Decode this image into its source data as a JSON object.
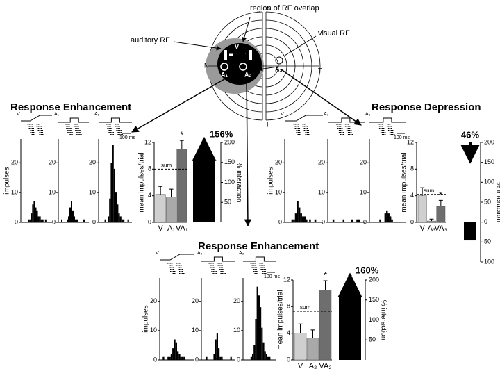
{
  "diagram": {
    "labels": {
      "top": "S",
      "bottom": "I",
      "left": "N",
      "right": "T",
      "overlap": "region of RF overlap",
      "auditory": "auditory RF",
      "visual": "visual RF",
      "v": "V",
      "a1": "A₁",
      "a2": "A₂",
      "a3": "A₃"
    }
  },
  "sections": [
    "Response Enhancement",
    "Response Depression",
    "Response Enhancement"
  ],
  "chart_data": [
    {
      "type": "histogram",
      "ylabel": "impulses",
      "stimulus": "V",
      "bins": [
        0,
        1,
        2,
        3,
        4,
        5,
        6,
        7,
        8,
        9,
        10,
        11,
        12,
        13,
        14,
        15,
        16,
        17,
        18,
        19,
        20
      ],
      "counts": [
        0,
        0,
        0,
        0,
        1,
        1,
        3,
        6,
        7,
        5,
        4,
        2,
        2,
        1,
        1,
        0,
        1,
        0,
        0,
        0
      ],
      "ylim": [
        0,
        28
      ],
      "yticks": [
        0,
        10,
        20
      ]
    },
    {
      "type": "histogram",
      "stimulus": "A₁",
      "bins": [
        0,
        1,
        2,
        3,
        4,
        5,
        6,
        7,
        8,
        9,
        10,
        11,
        12,
        13,
        14,
        15,
        16,
        17,
        18,
        19,
        20
      ],
      "counts": [
        0,
        1,
        0,
        0,
        0,
        1,
        2,
        5,
        7,
        4,
        2,
        1,
        1,
        0,
        0,
        0,
        0,
        1,
        0,
        0
      ],
      "ylim": [
        0,
        28
      ],
      "yticks": [
        0,
        10,
        20
      ]
    },
    {
      "type": "histogram",
      "stimulus": "A₁",
      "scale_label": "100 ms",
      "bins": [
        0,
        1,
        2,
        3,
        4,
        5,
        6,
        7,
        8,
        9,
        10,
        11,
        12,
        13,
        14,
        15,
        16,
        17,
        18,
        19,
        20
      ],
      "counts": [
        0,
        0,
        0,
        1,
        0,
        2,
        8,
        20,
        26,
        18,
        10,
        6,
        3,
        2,
        1,
        1,
        0,
        0,
        1,
        0
      ],
      "ylim": [
        0,
        28
      ],
      "yticks": [
        0,
        10,
        20
      ]
    },
    {
      "type": "bar",
      "ylabel": "mean impulses/trial",
      "categories": [
        "V",
        "A₁",
        "VA₁"
      ],
      "values": [
        4.2,
        3.8,
        11
      ],
      "errors": [
        1.2,
        1.2,
        1.3
      ],
      "colors": [
        "#cfcfcf",
        "#a9a9a9",
        "#6e6e6e"
      ],
      "ylim": [
        0,
        12
      ],
      "yticks": [
        0,
        4,
        8,
        12
      ],
      "sum_label": "sum",
      "sum_value": 8,
      "annotation": "*",
      "y2label": "% interaction",
      "y2lim": [
        0,
        200
      ],
      "y2ticks": [
        50,
        100,
        150,
        200
      ],
      "interaction": 156,
      "interaction_label": "156%",
      "interaction_color": "#000000"
    },
    {
      "type": "histogram",
      "ylabel": "impulses",
      "stimulus": "V",
      "bins": [
        0,
        1,
        2,
        3,
        4,
        5,
        6,
        7,
        8,
        9,
        10,
        11,
        12,
        13,
        14,
        15,
        16,
        17,
        18,
        19,
        20
      ],
      "counts": [
        0,
        0,
        0,
        1,
        1,
        3,
        7,
        5,
        3,
        2,
        2,
        1,
        0,
        1,
        0,
        0,
        1,
        0,
        0,
        0
      ],
      "ylim": [
        0,
        28
      ],
      "yticks": [
        0,
        10,
        20
      ]
    },
    {
      "type": "histogram",
      "stimulus": "A₃",
      "bins": [
        0,
        1,
        2,
        3,
        4,
        5,
        6,
        7,
        8,
        9,
        10,
        11,
        12,
        13,
        14,
        15,
        16,
        17,
        18,
        19,
        20
      ],
      "counts": [
        0,
        0,
        1,
        0,
        0,
        0,
        0,
        0,
        1,
        0,
        0,
        0,
        0,
        1,
        0,
        0,
        1,
        1,
        0,
        0
      ],
      "ylim": [
        0,
        28
      ],
      "yticks": [
        0,
        10,
        20
      ]
    },
    {
      "type": "histogram",
      "stimulus": "A₃",
      "scale_label": "100 ms",
      "bins": [
        0,
        1,
        2,
        3,
        4,
        5,
        6,
        7,
        8,
        9,
        10,
        11,
        12,
        13,
        14,
        15,
        16,
        17,
        18,
        19,
        20
      ],
      "counts": [
        0,
        0,
        0,
        0,
        0,
        1,
        0,
        0,
        3,
        4,
        3,
        2,
        1,
        0,
        0,
        0,
        0,
        0,
        0,
        0
      ],
      "ylim": [
        0,
        28
      ],
      "yticks": [
        0,
        10,
        20
      ]
    },
    {
      "type": "bar",
      "ylabel": "mean impulses/trial",
      "categories": [
        "V",
        "A₃",
        "VA₃"
      ],
      "values": [
        4,
        0.2,
        2.4
      ],
      "errors": [
        1.2,
        0.3,
        0.9
      ],
      "colors": [
        "#cfcfcf",
        "#a9a9a9",
        "#6e6e6e"
      ],
      "ylim": [
        0,
        12
      ],
      "yticks": [
        0,
        4,
        8,
        12
      ],
      "sum_label": "sum",
      "sum_value": 4.2,
      "annotation": "*",
      "y2label": "% interaction",
      "y2lim": [
        -100,
        200
      ],
      "y2ticks": [
        {
          "value": -100,
          "label": "100"
        },
        {
          "value": -50,
          "label": "50"
        },
        0,
        50,
        100,
        150,
        200
      ],
      "interaction": -46,
      "interaction_label": "46%",
      "interaction_color": "#000000"
    },
    {
      "type": "histogram",
      "ylabel": "impulses",
      "stimulus": "V",
      "bins": [
        0,
        1,
        2,
        3,
        4,
        5,
        6,
        7,
        8,
        9,
        10,
        11,
        12,
        13,
        14,
        15,
        16,
        17,
        18,
        19,
        20
      ],
      "counts": [
        0,
        1,
        0,
        0,
        1,
        1,
        2,
        4,
        7,
        6,
        3,
        2,
        1,
        1,
        1,
        0,
        0,
        0,
        0,
        0
      ],
      "ylim": [
        0,
        28
      ],
      "yticks": [
        0,
        10,
        20
      ]
    },
    {
      "type": "histogram",
      "stimulus": "A₂",
      "bins": [
        0,
        1,
        2,
        3,
        4,
        5,
        6,
        7,
        8,
        9,
        10,
        11,
        12,
        13,
        14,
        15,
        16,
        17,
        18,
        19,
        20
      ],
      "counts": [
        0,
        0,
        1,
        0,
        0,
        0,
        0,
        2,
        7,
        9,
        4,
        1,
        1,
        0,
        0,
        0,
        0,
        0,
        1,
        0
      ],
      "ylim": [
        0,
        28
      ],
      "yticks": [
        0,
        10,
        20
      ]
    },
    {
      "type": "histogram",
      "stimulus": "A₂",
      "scale_label": "100 ms",
      "bins": [
        0,
        1,
        2,
        3,
        4,
        5,
        6,
        7,
        8,
        9,
        10,
        11,
        12,
        13,
        14,
        15,
        16,
        17,
        18,
        19,
        20
      ],
      "counts": [
        0,
        0,
        0,
        0,
        1,
        2,
        5,
        14,
        25,
        22,
        18,
        11,
        6,
        3,
        2,
        1,
        1,
        0,
        0,
        0
      ],
      "ylim": [
        0,
        28
      ],
      "yticks": [
        0,
        10,
        20
      ]
    },
    {
      "type": "bar",
      "ylabel": "mean impulses/trial",
      "categories": [
        "V",
        "A₂",
        "VA₂"
      ],
      "values": [
        4,
        3.3,
        10.5
      ],
      "errors": [
        1.4,
        1.2,
        1.4
      ],
      "colors": [
        "#cfcfcf",
        "#a9a9a9",
        "#6e6e6e"
      ],
      "ylim": [
        0,
        12
      ],
      "yticks": [
        0,
        4,
        8,
        12
      ],
      "sum_label": "sum",
      "sum_value": 7.3,
      "annotation": "*",
      "y2label": "% interaction",
      "y2lim": [
        0,
        200
      ],
      "y2ticks": [
        50,
        100,
        150,
        200
      ],
      "interaction": 160,
      "interaction_label": "160%",
      "interaction_color": "#000000"
    }
  ]
}
